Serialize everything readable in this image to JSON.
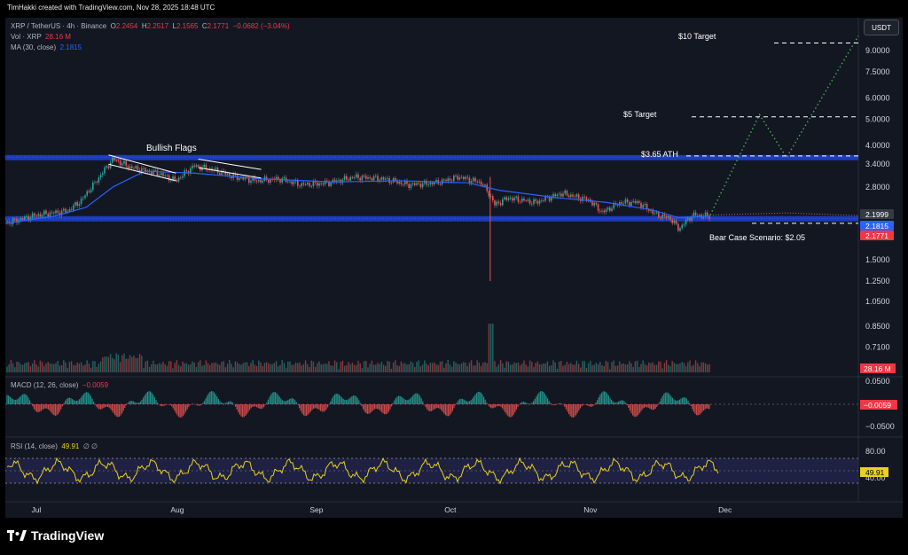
{
  "caption": "TimHakki created with TradingView.com, Nov 28, 2025 18:48 UTC",
  "legend": {
    "symbol": "XRP / TetherUS · 4h · Binance",
    "o_label": "O",
    "o_val": "2.2454",
    "h_label": "H",
    "h_val": "2.2517",
    "l_label": "L",
    "l_val": "2.1565",
    "c_label": "C",
    "c_val": "2.1771",
    "change": "−0.0682 (−3.04%)",
    "vol_label": "Vol · XRP",
    "vol_val": "28.16 M",
    "ma_label": "MA (30, close)",
    "ma_val": "2.1815",
    "macd_label": "MACD (12, 26, close)",
    "macd_val": "−0.0059",
    "rsi_label": "RSI (14, close)",
    "rsi_val": "49.91",
    "rsi_extra": "∅  ∅"
  },
  "currency_button": "USDT",
  "footer": {
    "brand": "TradingView"
  },
  "colors": {
    "up": "#26a69a",
    "down": "#ef5350",
    "ma": "#2962ff",
    "rsi": "#e9d11c",
    "zone": "#1e3fc8",
    "projection": "#4caf50",
    "ma_tag": "#2962ff",
    "price_tag": "#f23645",
    "bg": "#131722"
  },
  "chart_data": {
    "type": "candlestick",
    "title": "XRP / TetherUS · 4h · Binance",
    "y_scale": "log",
    "price_axis_ticks": [
      "9.0000",
      "7.5000",
      "6.0000",
      "5.0000",
      "4.0000",
      "3.4000",
      "2.8000",
      "1.5000",
      "1.2500",
      "1.0500",
      "0.8500",
      "0.7100"
    ],
    "price_tags": [
      {
        "label": "2.1999",
        "kind": "last"
      },
      {
        "label": "2.1815",
        "kind": "ma"
      },
      {
        "label": "2.1771",
        "kind": "close"
      }
    ],
    "volume_tag": "28.16 M",
    "x_ticks": [
      "Jul",
      "Aug",
      "Sep",
      "Oct",
      "Nov",
      "Dec"
    ],
    "x_domain": [
      "2025-06-24",
      "2025-12-31"
    ],
    "close_series": {
      "dates": [
        "2025-06-24",
        "2025-07-01",
        "2025-07-08",
        "2025-07-11",
        "2025-07-14",
        "2025-07-18",
        "2025-07-22",
        "2025-07-28",
        "2025-08-01",
        "2025-08-05",
        "2025-08-09",
        "2025-08-14",
        "2025-08-19",
        "2025-08-24",
        "2025-08-29",
        "2025-09-04",
        "2025-09-10",
        "2025-09-16",
        "2025-09-22",
        "2025-09-28",
        "2025-10-03",
        "2025-10-08",
        "2025-10-10",
        "2025-10-11",
        "2025-10-14",
        "2025-10-20",
        "2025-10-26",
        "2025-11-01",
        "2025-11-04",
        "2025-11-08",
        "2025-11-12",
        "2025-11-16",
        "2025-11-19",
        "2025-11-21",
        "2025-11-24",
        "2025-11-28"
      ],
      "values": [
        2.05,
        2.2,
        2.28,
        2.5,
        2.9,
        3.55,
        3.3,
        3.15,
        2.95,
        3.35,
        3.25,
        3.05,
        2.95,
        3.0,
        2.85,
        2.9,
        3.05,
        3.0,
        2.85,
        2.9,
        3.05,
        2.9,
        2.6,
        2.4,
        2.55,
        2.45,
        2.65,
        2.5,
        2.25,
        2.45,
        2.45,
        2.2,
        2.15,
        1.95,
        2.2,
        2.18
      ]
    },
    "wick_low": {
      "date": "2025-10-10",
      "value": 1.25
    },
    "ma_series": {
      "dates": [
        "2025-06-24",
        "2025-07-05",
        "2025-07-12",
        "2025-07-18",
        "2025-07-25",
        "2025-08-05",
        "2025-08-20",
        "2025-09-05",
        "2025-09-20",
        "2025-10-05",
        "2025-10-12",
        "2025-10-25",
        "2025-11-05",
        "2025-11-15",
        "2025-11-21",
        "2025-11-28"
      ],
      "values": [
        2.05,
        2.18,
        2.35,
        2.8,
        3.2,
        3.15,
        3.0,
        2.92,
        2.95,
        2.9,
        2.72,
        2.55,
        2.45,
        2.3,
        2.15,
        2.18
      ]
    },
    "zones": [
      {
        "label": "$3.65 ATH",
        "low": 3.55,
        "high": 3.68
      },
      {
        "label": "Bear Case Scenario: $2.05",
        "low": 2.1,
        "high": 2.18
      }
    ],
    "levels": [
      {
        "label": "$10 Target",
        "value": 9.6
      },
      {
        "label": "$5 Target",
        "value": 5.1
      },
      {
        "label": "$3.65 ATH",
        "value": 3.65
      },
      {
        "label": "Bear Case Scenario: $2.05",
        "value": 2.05
      }
    ],
    "projection": {
      "dates": [
        "2025-11-28",
        "2025-12-09",
        "2025-12-15",
        "2025-12-31"
      ],
      "values": [
        2.2,
        5.2,
        3.6,
        10.2
      ]
    },
    "annotations": [
      {
        "label": "Bullish Flags"
      }
    ],
    "macd": {
      "axis_ticks": [
        "0.0500",
        "−0.0500"
      ],
      "tag": "−0.0059"
    },
    "rsi": {
      "axis_ticks": [
        "80.00",
        "40.00"
      ],
      "tag": "49.91",
      "upper": 70,
      "lower": 30
    }
  }
}
